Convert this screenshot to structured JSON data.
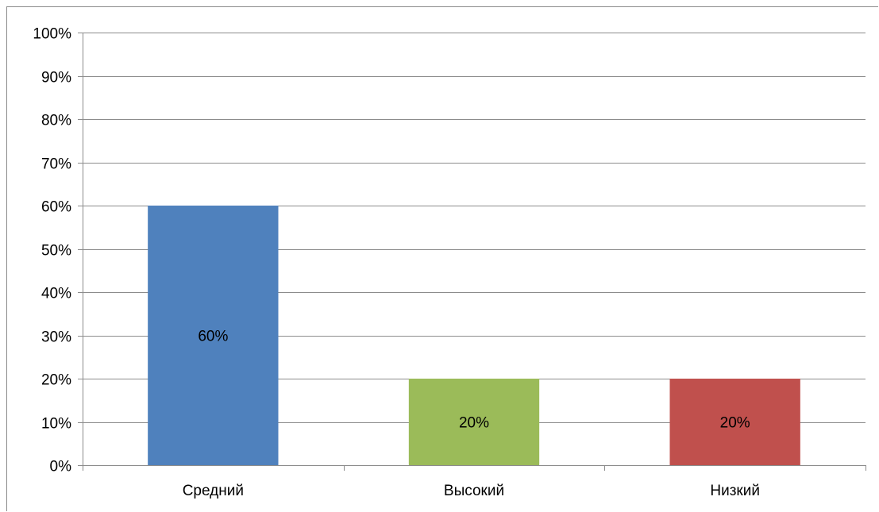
{
  "chart_data": {
    "type": "bar",
    "categories": [
      "Средний",
      "Высокий",
      "Низкий"
    ],
    "values": [
      60,
      20,
      20
    ],
    "data_labels": [
      "60%",
      "20%",
      "20%"
    ],
    "colors": [
      "#4f81bd",
      "#9bbb59",
      "#c0504d"
    ],
    "title": "",
    "xlabel": "",
    "ylabel": "",
    "ylim": [
      0,
      100
    ],
    "y_ticks": [
      0,
      10,
      20,
      30,
      40,
      50,
      60,
      70,
      80,
      90,
      100
    ],
    "y_tick_labels": [
      "0%",
      "10%",
      "20%",
      "30%",
      "40%",
      "50%",
      "60%",
      "70%",
      "80%",
      "90%",
      "100%"
    ],
    "grid": true,
    "legend": "none"
  }
}
